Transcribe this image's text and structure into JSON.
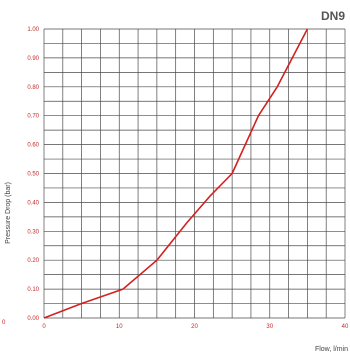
{
  "chart_data": {
    "type": "line",
    "title": "DN9",
    "xlabel": "Flow, l/min",
    "ylabel": "Pressure Drop (bar)",
    "xlim": [
      0,
      40
    ],
    "ylim": [
      0,
      1.0
    ],
    "x_ticks": [
      "0",
      "10",
      "20",
      "30",
      "40"
    ],
    "y_ticks": [
      "0.00",
      "0.10",
      "0.20",
      "0.30",
      "0.40",
      "0.50",
      "0.60",
      "0.70",
      "0.80",
      "0.90",
      "1.00"
    ],
    "left_corner_label": "0",
    "grid": true,
    "series": [
      {
        "x": [
          0,
          5,
          10.5,
          15,
          19,
          22,
          25,
          28.5,
          31,
          33,
          35
        ],
        "y": [
          0,
          0.05,
          0.1,
          0.2,
          0.33,
          0.42,
          0.5,
          0.7,
          0.8,
          0.9,
          1.0
        ]
      }
    ],
    "colors": {
      "line": "#d32020",
      "grid": "#4a4a4a",
      "tick": "#c62828"
    }
  }
}
